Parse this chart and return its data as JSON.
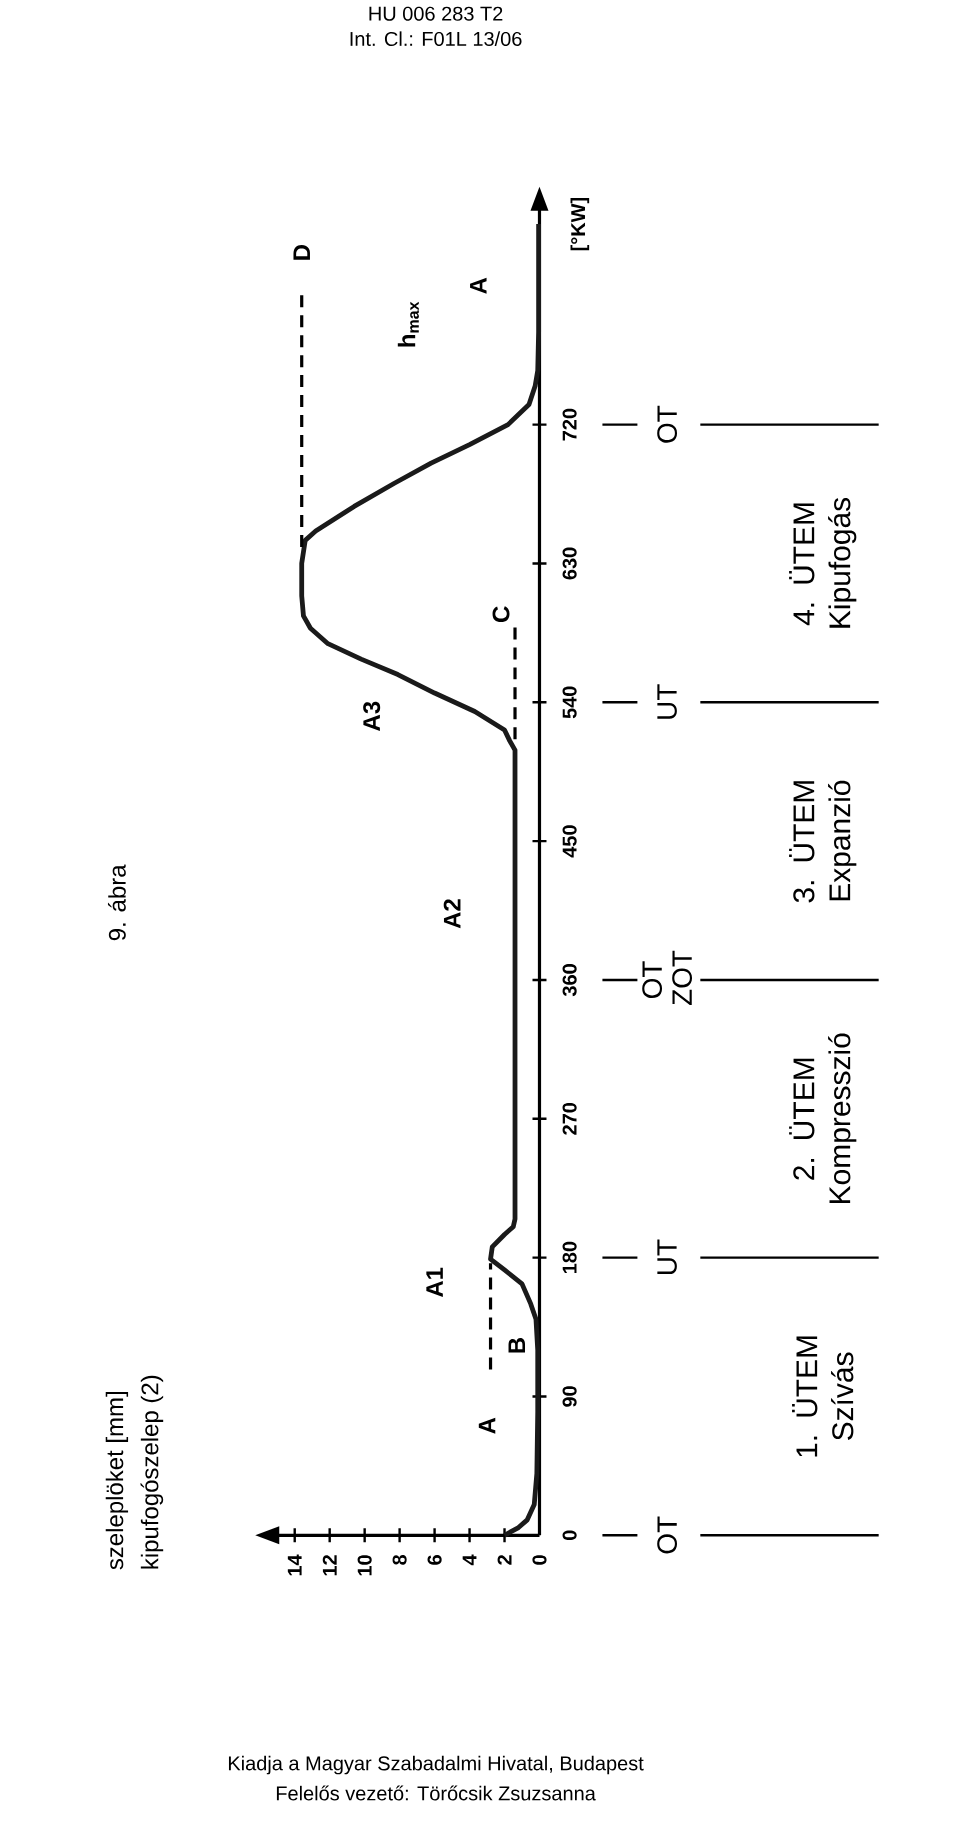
{
  "chart_data": {
    "type": "line",
    "title": "9. ábra",
    "ylabel": "[°KW]",
    "x": [
      2.0,
      1.2,
      0.7,
      0.3,
      0.15,
      0.1,
      0.1,
      0.2,
      0.5,
      1.0,
      2.0,
      2.8,
      2.7,
      2.0,
      1.5,
      1.4,
      1.4,
      1.7,
      2.0,
      3.7,
      6.0,
      8.1,
      10.2,
      12.1,
      13.1,
      13.5,
      13.6,
      13.6,
      13.4,
      12.8,
      10.6,
      8.3,
      6.2,
      4.0,
      1.8,
      0.6,
      0.25,
      0.1,
      0.05,
      0.05
    ],
    "series": [
      {
        "color": "#1a1a1a",
        "values": [
          0,
          5,
          10,
          20,
          40,
          80,
          120,
          140,
          150,
          163,
          172,
          179,
          187,
          195,
          200,
          205,
          509,
          515,
          522,
          534,
          546,
          558,
          568,
          578,
          588,
          596,
          609,
          630,
          645,
          651,
          667,
          682,
          695,
          707,
          720,
          733,
          745,
          755,
          780,
          850
        ]
      }
    ],
    "ylim": [
      0,
      860
    ],
    "yticks": [
      0,
      90,
      180,
      270,
      360,
      450,
      540,
      630,
      720
    ],
    "xlim": [
      15,
      0
    ],
    "xticks": [
      0,
      2,
      4,
      6,
      8,
      10,
      12,
      14
    ],
    "ref_lines": [
      {
        "axis": "y",
        "value": 0,
        "label": "OT"
      },
      {
        "axis": "y",
        "value": 180,
        "label": "UT"
      },
      {
        "axis": "y",
        "value": 360,
        "label": "OT ZOT"
      },
      {
        "axis": "y",
        "value": 540,
        "label": "UT"
      },
      {
        "axis": "y",
        "value": 720,
        "label": "OT"
      },
      {
        "axis": "x",
        "value": 13.6,
        "label": "D",
        "line_style": "dashed"
      },
      {
        "axis": "x",
        "value": 2.8,
        "line_style": "dashed"
      },
      {
        "axis": "x",
        "value": 1.4,
        "line_style": "dashed"
      }
    ],
    "annotations": [
      "szeleplöket [mm]",
      "kipufogószelep (2)",
      "HU 006 283 T2",
      "Int. Cl.: F01L 13/06",
      "Kiadja a Magyar Szabadalmi Hivatal, Budapest",
      "Felelős vezető: Törőcsik Zsuzsanna",
      "A",
      "B",
      "A1",
      "A2",
      "A3",
      "C",
      "h$_{max}$",
      "A",
      "1. ÜTEM Szívás",
      "2. ÜTEM Kompresszió",
      "3. ÜTEM Expanzió",
      "4. ÜTEM Kipufogás"
    ]
  }
}
